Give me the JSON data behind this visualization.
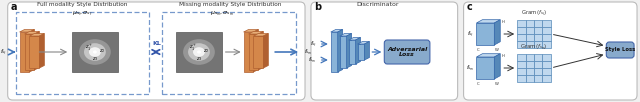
{
  "bg_color": "#f0f0f0",
  "panel_bg": "#ffffff",
  "orange_face": "#d4874a",
  "orange_top": "#e8b07a",
  "orange_side": "#b06030",
  "blue_face": "#8ab4d8",
  "blue_top": "#c0d8ee",
  "blue_side": "#5588b8",
  "blue_dark": "#3366aa",
  "adv_fill": "#88aacc",
  "style_fill": "#88aacc",
  "gray_dark": "#686868",
  "gray_mid": "#909090",
  "arrow_blue": "#4477bb",
  "arrow_gray": "#888888",
  "kl_color": "#3355aa",
  "label_a": "a",
  "label_b": "b",
  "label_c": "c",
  "title_full": "Full modality Style Distribution",
  "title_missing": "Missing modality Style Distribution",
  "title_disc": "Discriminator",
  "label_adv": "Adversarial\nLoss",
  "label_style": "Style Loss",
  "mu_sf": "$\\mu_{s_f}, \\sigma_{s_f}$",
  "mu_sm": "$\\mu_{s_m}, \\sigma_{s_m}$",
  "f_sf": "$f_{s_f}$",
  "f_sm": "$f_{s_m}$",
  "gram_sf": "$\\mathrm{Gram}\\,(f_{s_f})$",
  "gram_sm": "$\\mathrm{Gram}\\,(f_{s_m})$",
  "kl_label": "KL",
  "z1": "$z_1^+$",
  "z2": "$z_2$",
  "z3": "$z_3$",
  "H": "H",
  "C": "C",
  "W": "W"
}
